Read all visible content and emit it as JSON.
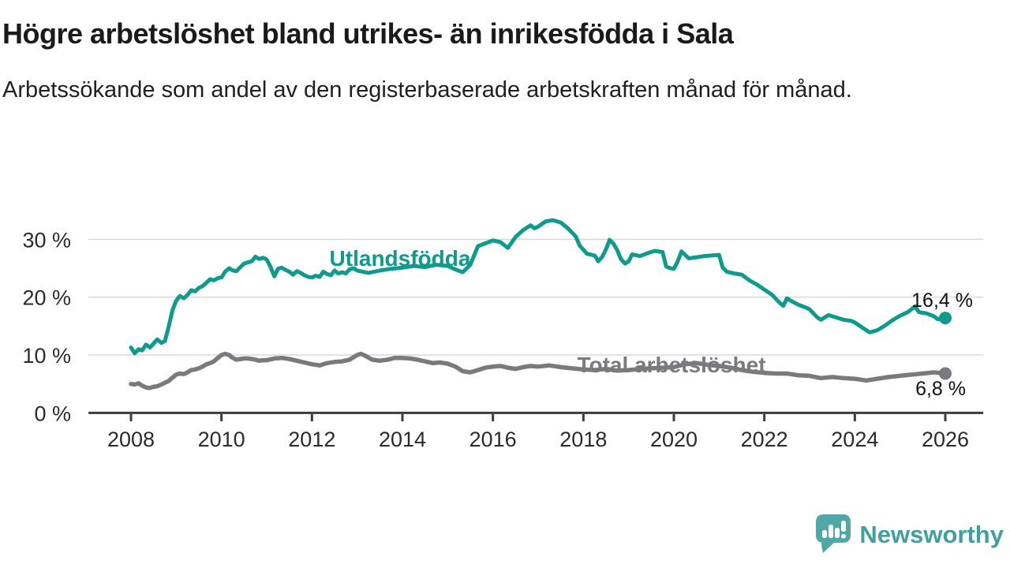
{
  "header": {
    "title": "Högre arbetslöshet bland utrikes- än inrikesfödda i Sala",
    "subtitle": "Arbetssökande som andel av den registerbaserade arbetskraften månad för månad."
  },
  "chart_data": {
    "type": "line",
    "unit": "%",
    "x_ticks": [
      2008,
      2010,
      2012,
      2014,
      2016,
      2018,
      2020,
      2022,
      2024,
      2026
    ],
    "y_ticks": [
      0,
      10,
      20,
      30
    ],
    "y_tick_labels": [
      "0 %",
      "10 %",
      "20 %",
      "30 %"
    ],
    "xlim": [
      2007.06,
      2026.84
    ],
    "ylim": [
      0,
      34.5
    ],
    "grid": "horizontal-only",
    "colors": {
      "grid": "#d9d9d9",
      "axis": "#3b3b3b",
      "tick_text": "#2b2b2b"
    },
    "series": [
      {
        "name": "Utlandsfödda",
        "color": "#0E9A8C",
        "end_label": "16,4 %",
        "end_value": 16.4,
        "points": [
          [
            2008.0,
            11.3
          ],
          [
            2008.08,
            10.3
          ],
          [
            2008.17,
            11.0
          ],
          [
            2008.25,
            10.8
          ],
          [
            2008.33,
            11.8
          ],
          [
            2008.42,
            11.3
          ],
          [
            2008.5,
            12.0
          ],
          [
            2008.58,
            12.7
          ],
          [
            2008.67,
            12.1
          ],
          [
            2008.75,
            12.4
          ],
          [
            2008.83,
            14.8
          ],
          [
            2008.92,
            17.8
          ],
          [
            2009.0,
            19.4
          ],
          [
            2009.08,
            20.2
          ],
          [
            2009.17,
            19.8
          ],
          [
            2009.25,
            20.4
          ],
          [
            2009.33,
            21.2
          ],
          [
            2009.42,
            21.0
          ],
          [
            2009.5,
            21.6
          ],
          [
            2009.58,
            21.9
          ],
          [
            2009.67,
            22.5
          ],
          [
            2009.75,
            23.1
          ],
          [
            2009.83,
            22.9
          ],
          [
            2009.92,
            23.3
          ],
          [
            2010.0,
            23.4
          ],
          [
            2010.08,
            24.4
          ],
          [
            2010.17,
            25.0
          ],
          [
            2010.25,
            24.6
          ],
          [
            2010.33,
            24.5
          ],
          [
            2010.42,
            25.2
          ],
          [
            2010.5,
            25.8
          ],
          [
            2010.58,
            26.0
          ],
          [
            2010.67,
            26.2
          ],
          [
            2010.75,
            27.0
          ],
          [
            2010.83,
            26.6
          ],
          [
            2010.92,
            26.8
          ],
          [
            2011.0,
            26.5
          ],
          [
            2011.08,
            25.3
          ],
          [
            2011.17,
            23.6
          ],
          [
            2011.25,
            24.9
          ],
          [
            2011.33,
            25.1
          ],
          [
            2011.42,
            24.7
          ],
          [
            2011.5,
            24.4
          ],
          [
            2011.58,
            23.9
          ],
          [
            2011.67,
            24.5
          ],
          [
            2011.75,
            24.2
          ],
          [
            2011.83,
            23.8
          ],
          [
            2011.92,
            23.5
          ],
          [
            2012.0,
            23.4
          ],
          [
            2012.08,
            23.7
          ],
          [
            2012.17,
            23.5
          ],
          [
            2012.25,
            24.4
          ],
          [
            2012.33,
            24.0
          ],
          [
            2012.42,
            23.8
          ],
          [
            2012.5,
            24.6
          ],
          [
            2012.58,
            24.1
          ],
          [
            2012.67,
            24.3
          ],
          [
            2012.75,
            24.1
          ],
          [
            2012.83,
            24.8
          ],
          [
            2012.92,
            25.0
          ],
          [
            2013.0,
            24.6
          ],
          [
            2013.25,
            24.2
          ],
          [
            2013.5,
            24.6
          ],
          [
            2013.75,
            24.9
          ],
          [
            2014.0,
            25.1
          ],
          [
            2014.25,
            25.4
          ],
          [
            2014.5,
            25.2
          ],
          [
            2014.75,
            25.6
          ],
          [
            2015.0,
            25.4
          ],
          [
            2015.17,
            24.8
          ],
          [
            2015.33,
            24.3
          ],
          [
            2015.5,
            25.6
          ],
          [
            2015.67,
            28.8
          ],
          [
            2015.83,
            29.3
          ],
          [
            2016.0,
            29.8
          ],
          [
            2016.17,
            29.5
          ],
          [
            2016.33,
            28.5
          ],
          [
            2016.5,
            30.4
          ],
          [
            2016.67,
            31.6
          ],
          [
            2016.83,
            32.4
          ],
          [
            2016.92,
            31.9
          ],
          [
            2017.0,
            32.2
          ],
          [
            2017.17,
            33.1
          ],
          [
            2017.33,
            33.3
          ],
          [
            2017.5,
            32.9
          ],
          [
            2017.67,
            31.8
          ],
          [
            2017.83,
            30.5
          ],
          [
            2017.92,
            28.9
          ],
          [
            2018.0,
            28.2
          ],
          [
            2018.08,
            27.5
          ],
          [
            2018.25,
            27.2
          ],
          [
            2018.33,
            26.2
          ],
          [
            2018.42,
            27.0
          ],
          [
            2018.5,
            28.3
          ],
          [
            2018.58,
            29.9
          ],
          [
            2018.67,
            29.2
          ],
          [
            2018.75,
            28.1
          ],
          [
            2018.83,
            26.6
          ],
          [
            2018.92,
            25.8
          ],
          [
            2019.0,
            26.2
          ],
          [
            2019.08,
            27.4
          ],
          [
            2019.25,
            27.1
          ],
          [
            2019.42,
            27.6
          ],
          [
            2019.58,
            28.0
          ],
          [
            2019.75,
            27.8
          ],
          [
            2019.83,
            25.3
          ],
          [
            2019.92,
            25.0
          ],
          [
            2020.0,
            24.9
          ],
          [
            2020.08,
            26.1
          ],
          [
            2020.17,
            27.9
          ],
          [
            2020.33,
            26.7
          ],
          [
            2020.5,
            26.9
          ],
          [
            2020.67,
            27.1
          ],
          [
            2020.83,
            27.2
          ],
          [
            2021.0,
            27.3
          ],
          [
            2021.08,
            25.1
          ],
          [
            2021.17,
            24.4
          ],
          [
            2021.33,
            24.1
          ],
          [
            2021.5,
            23.9
          ],
          [
            2021.67,
            22.9
          ],
          [
            2021.83,
            22.2
          ],
          [
            2022.0,
            21.3
          ],
          [
            2022.17,
            20.4
          ],
          [
            2022.33,
            19.1
          ],
          [
            2022.42,
            18.5
          ],
          [
            2022.5,
            19.8
          ],
          [
            2022.58,
            19.4
          ],
          [
            2022.75,
            18.7
          ],
          [
            2022.92,
            18.2
          ],
          [
            2023.0,
            17.9
          ],
          [
            2023.17,
            16.5
          ],
          [
            2023.25,
            16.1
          ],
          [
            2023.42,
            16.9
          ],
          [
            2023.58,
            16.5
          ],
          [
            2023.75,
            16.1
          ],
          [
            2023.92,
            15.9
          ],
          [
            2024.0,
            15.6
          ],
          [
            2024.08,
            15.2
          ],
          [
            2024.25,
            14.3
          ],
          [
            2024.33,
            13.9
          ],
          [
            2024.5,
            14.3
          ],
          [
            2024.67,
            15.1
          ],
          [
            2024.83,
            16.0
          ],
          [
            2025.0,
            16.8
          ],
          [
            2025.17,
            17.4
          ],
          [
            2025.33,
            18.4
          ],
          [
            2025.42,
            17.4
          ],
          [
            2025.58,
            17.2
          ],
          [
            2025.75,
            16.7
          ],
          [
            2025.83,
            16.2
          ],
          [
            2025.92,
            16.1
          ],
          [
            2026.0,
            16.4
          ]
        ]
      },
      {
        "name": "Total arbetslöshet",
        "color": "#7A7A7E",
        "end_label": "6,8 %",
        "end_value": 6.8,
        "points": [
          [
            2008.0,
            5.0
          ],
          [
            2008.08,
            4.9
          ],
          [
            2008.17,
            5.1
          ],
          [
            2008.25,
            4.7
          ],
          [
            2008.33,
            4.4
          ],
          [
            2008.42,
            4.3
          ],
          [
            2008.5,
            4.5
          ],
          [
            2008.58,
            4.6
          ],
          [
            2008.67,
            4.9
          ],
          [
            2008.75,
            5.2
          ],
          [
            2008.83,
            5.5
          ],
          [
            2008.92,
            6.1
          ],
          [
            2009.0,
            6.6
          ],
          [
            2009.08,
            6.8
          ],
          [
            2009.17,
            6.7
          ],
          [
            2009.25,
            7.0
          ],
          [
            2009.33,
            7.4
          ],
          [
            2009.42,
            7.5
          ],
          [
            2009.5,
            7.7
          ],
          [
            2009.58,
            8.0
          ],
          [
            2009.67,
            8.4
          ],
          [
            2009.75,
            8.6
          ],
          [
            2009.83,
            8.9
          ],
          [
            2009.92,
            9.5
          ],
          [
            2010.0,
            10.0
          ],
          [
            2010.08,
            10.2
          ],
          [
            2010.17,
            10.0
          ],
          [
            2010.25,
            9.5
          ],
          [
            2010.33,
            9.2
          ],
          [
            2010.42,
            9.3
          ],
          [
            2010.5,
            9.4
          ],
          [
            2010.58,
            9.4
          ],
          [
            2010.67,
            9.3
          ],
          [
            2010.75,
            9.2
          ],
          [
            2010.83,
            9.0
          ],
          [
            2010.92,
            9.1
          ],
          [
            2011.0,
            9.1
          ],
          [
            2011.17,
            9.4
          ],
          [
            2011.33,
            9.5
          ],
          [
            2011.5,
            9.3
          ],
          [
            2011.67,
            9.0
          ],
          [
            2011.83,
            8.7
          ],
          [
            2012.0,
            8.4
          ],
          [
            2012.17,
            8.2
          ],
          [
            2012.33,
            8.6
          ],
          [
            2012.5,
            8.8
          ],
          [
            2012.67,
            8.9
          ],
          [
            2012.83,
            9.2
          ],
          [
            2013.0,
            10.0
          ],
          [
            2013.08,
            10.2
          ],
          [
            2013.17,
            9.9
          ],
          [
            2013.33,
            9.2
          ],
          [
            2013.5,
            9.0
          ],
          [
            2013.67,
            9.2
          ],
          [
            2013.83,
            9.5
          ],
          [
            2014.0,
            9.5
          ],
          [
            2014.17,
            9.4
          ],
          [
            2014.33,
            9.2
          ],
          [
            2014.5,
            8.9
          ],
          [
            2014.67,
            8.6
          ],
          [
            2014.83,
            8.7
          ],
          [
            2015.0,
            8.5
          ],
          [
            2015.17,
            8.0
          ],
          [
            2015.33,
            7.2
          ],
          [
            2015.5,
            7.0
          ],
          [
            2015.67,
            7.4
          ],
          [
            2015.83,
            7.8
          ],
          [
            2016.0,
            8.0
          ],
          [
            2016.17,
            8.1
          ],
          [
            2016.33,
            7.8
          ],
          [
            2016.5,
            7.6
          ],
          [
            2016.67,
            7.9
          ],
          [
            2016.83,
            8.1
          ],
          [
            2017.0,
            8.0
          ],
          [
            2017.25,
            8.2
          ],
          [
            2017.5,
            7.9
          ],
          [
            2017.75,
            7.7
          ],
          [
            2018.0,
            7.5
          ],
          [
            2018.25,
            7.4
          ],
          [
            2018.5,
            7.6
          ],
          [
            2018.75,
            7.3
          ],
          [
            2019.0,
            7.4
          ],
          [
            2019.25,
            7.6
          ],
          [
            2019.5,
            7.7
          ],
          [
            2019.75,
            7.8
          ],
          [
            2020.0,
            7.9
          ],
          [
            2020.25,
            8.4
          ],
          [
            2020.5,
            8.6
          ],
          [
            2020.75,
            8.3
          ],
          [
            2021.0,
            8.1
          ],
          [
            2021.25,
            7.8
          ],
          [
            2021.5,
            7.4
          ],
          [
            2021.75,
            7.1
          ],
          [
            2022.0,
            6.9
          ],
          [
            2022.25,
            6.8
          ],
          [
            2022.5,
            6.8
          ],
          [
            2022.75,
            6.5
          ],
          [
            2023.0,
            6.4
          ],
          [
            2023.25,
            6.0
          ],
          [
            2023.5,
            6.2
          ],
          [
            2023.75,
            6.0
          ],
          [
            2024.0,
            5.9
          ],
          [
            2024.25,
            5.6
          ],
          [
            2024.5,
            5.9
          ],
          [
            2024.75,
            6.2
          ],
          [
            2025.0,
            6.4
          ],
          [
            2025.25,
            6.6
          ],
          [
            2025.5,
            6.8
          ],
          [
            2025.75,
            7.0
          ],
          [
            2026.0,
            6.8
          ]
        ]
      }
    ]
  },
  "footer": {
    "brand": "Newsworthy",
    "logo_color": "#4FA8A5",
    "text_color": "#41A09E"
  }
}
